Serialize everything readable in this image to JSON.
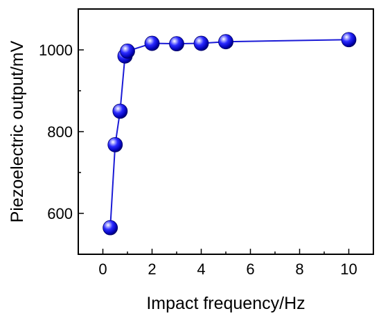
{
  "chart_data": {
    "type": "line",
    "xlabel": "Impact frequency/Hz",
    "ylabel": "Piezoelectric output/mV",
    "xlim": [
      -1,
      11
    ],
    "ylim": [
      500,
      1100
    ],
    "x_ticks": [
      0,
      2,
      4,
      6,
      8,
      10
    ],
    "y_ticks": [
      600,
      800,
      1000
    ],
    "grid": false,
    "legend": "none",
    "series": [
      {
        "x": [
          0.3,
          0.5,
          0.7,
          0.9,
          1,
          2,
          3,
          4,
          5,
          10
        ],
        "y": [
          565,
          768,
          850,
          985,
          997,
          1016,
          1015,
          1016,
          1020,
          1025
        ],
        "color": "#1a1ad6",
        "marker": "sphere"
      }
    ]
  }
}
